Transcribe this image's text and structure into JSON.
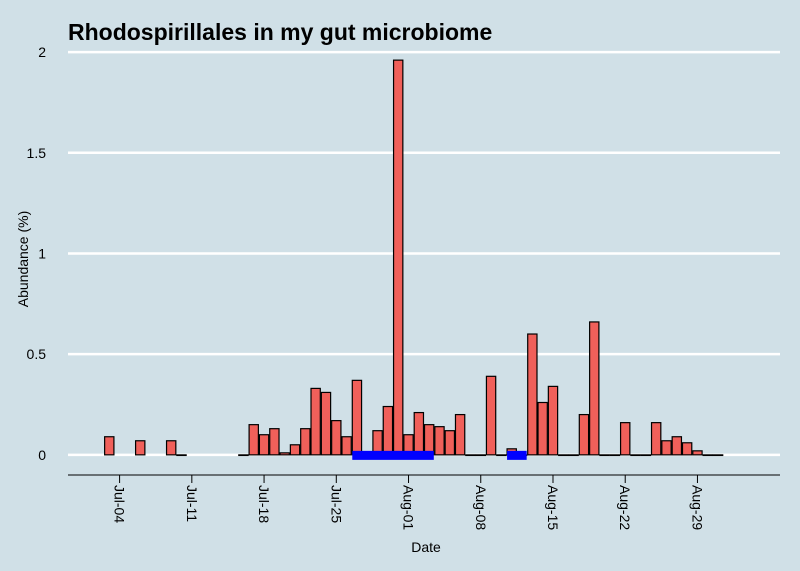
{
  "chart_data": {
    "type": "bar",
    "title": "Rhodospirillales in my gut microbiome",
    "xlabel": "Date",
    "ylabel": "Abundance (%)",
    "ylim": [
      -0.1,
      2.05
    ],
    "xlim": [
      "2015-06-29",
      "2015-09-06"
    ],
    "y_ticks": [
      0,
      0.5,
      1,
      1.5,
      2
    ],
    "y_tick_labels": [
      "0",
      "0.5",
      "1",
      "1.5",
      "2"
    ],
    "x_ticks": [
      "2015-07-04",
      "2015-07-11",
      "2015-07-18",
      "2015-07-25",
      "2015-08-01",
      "2015-08-08",
      "2015-08-15",
      "2015-08-22",
      "2015-08-29"
    ],
    "x_tick_labels": [
      "Jul-04",
      "Jul-11",
      "Jul-18",
      "Jul-25",
      "Aug-01",
      "Aug-08",
      "Aug-15",
      "Aug-22",
      "Aug-29"
    ],
    "grid": "horizontal",
    "colors": {
      "background": "#d0e0e7",
      "bar_fill": "#f0605a",
      "bar_stroke": "#000000",
      "grid": "#ffffff",
      "marker": "#0000ff"
    },
    "series": [
      {
        "dates": [
          "2015-07-03",
          "2015-07-06",
          "2015-07-09",
          "2015-07-10",
          "2015-07-16",
          "2015-07-17",
          "2015-07-18",
          "2015-07-19",
          "2015-07-20",
          "2015-07-21",
          "2015-07-22",
          "2015-07-23",
          "2015-07-24",
          "2015-07-25",
          "2015-07-26",
          "2015-07-27",
          "2015-07-28",
          "2015-07-29",
          "2015-07-30",
          "2015-07-31",
          "2015-08-01",
          "2015-08-02",
          "2015-08-03",
          "2015-08-04",
          "2015-08-05",
          "2015-08-06",
          "2015-08-07",
          "2015-08-08",
          "2015-08-09",
          "2015-08-10",
          "2015-08-11",
          "2015-08-12",
          "2015-08-13",
          "2015-08-14",
          "2015-08-15",
          "2015-08-16",
          "2015-08-17",
          "2015-08-18",
          "2015-08-19",
          "2015-08-20",
          "2015-08-21",
          "2015-08-22",
          "2015-08-23",
          "2015-08-24",
          "2015-08-25",
          "2015-08-26",
          "2015-08-27",
          "2015-08-28",
          "2015-08-29",
          "2015-08-30",
          "2015-08-31"
        ],
        "values": [
          0.09,
          0.07,
          0.07,
          0.0,
          0.0,
          0.15,
          0.1,
          0.13,
          0.01,
          0.05,
          0.13,
          0.33,
          0.31,
          0.17,
          0.09,
          0.37,
          0.0,
          0.12,
          0.24,
          1.96,
          0.1,
          0.21,
          0.15,
          0.14,
          0.12,
          0.2,
          0.0,
          0.0,
          0.39,
          0.0,
          0.03,
          0.0,
          0.6,
          0.26,
          0.34,
          0.0,
          0.0,
          0.2,
          0.66,
          0.0,
          0.0,
          0.16,
          0.0,
          0.0,
          0.16,
          0.07,
          0.09,
          0.06,
          0.02,
          0.0,
          0.0
        ]
      }
    ],
    "markers": [
      {
        "start": "2015-07-27",
        "end": "2015-08-03",
        "y": 0
      },
      {
        "start": "2015-08-11",
        "end": "2015-08-12",
        "y": 0
      }
    ]
  }
}
